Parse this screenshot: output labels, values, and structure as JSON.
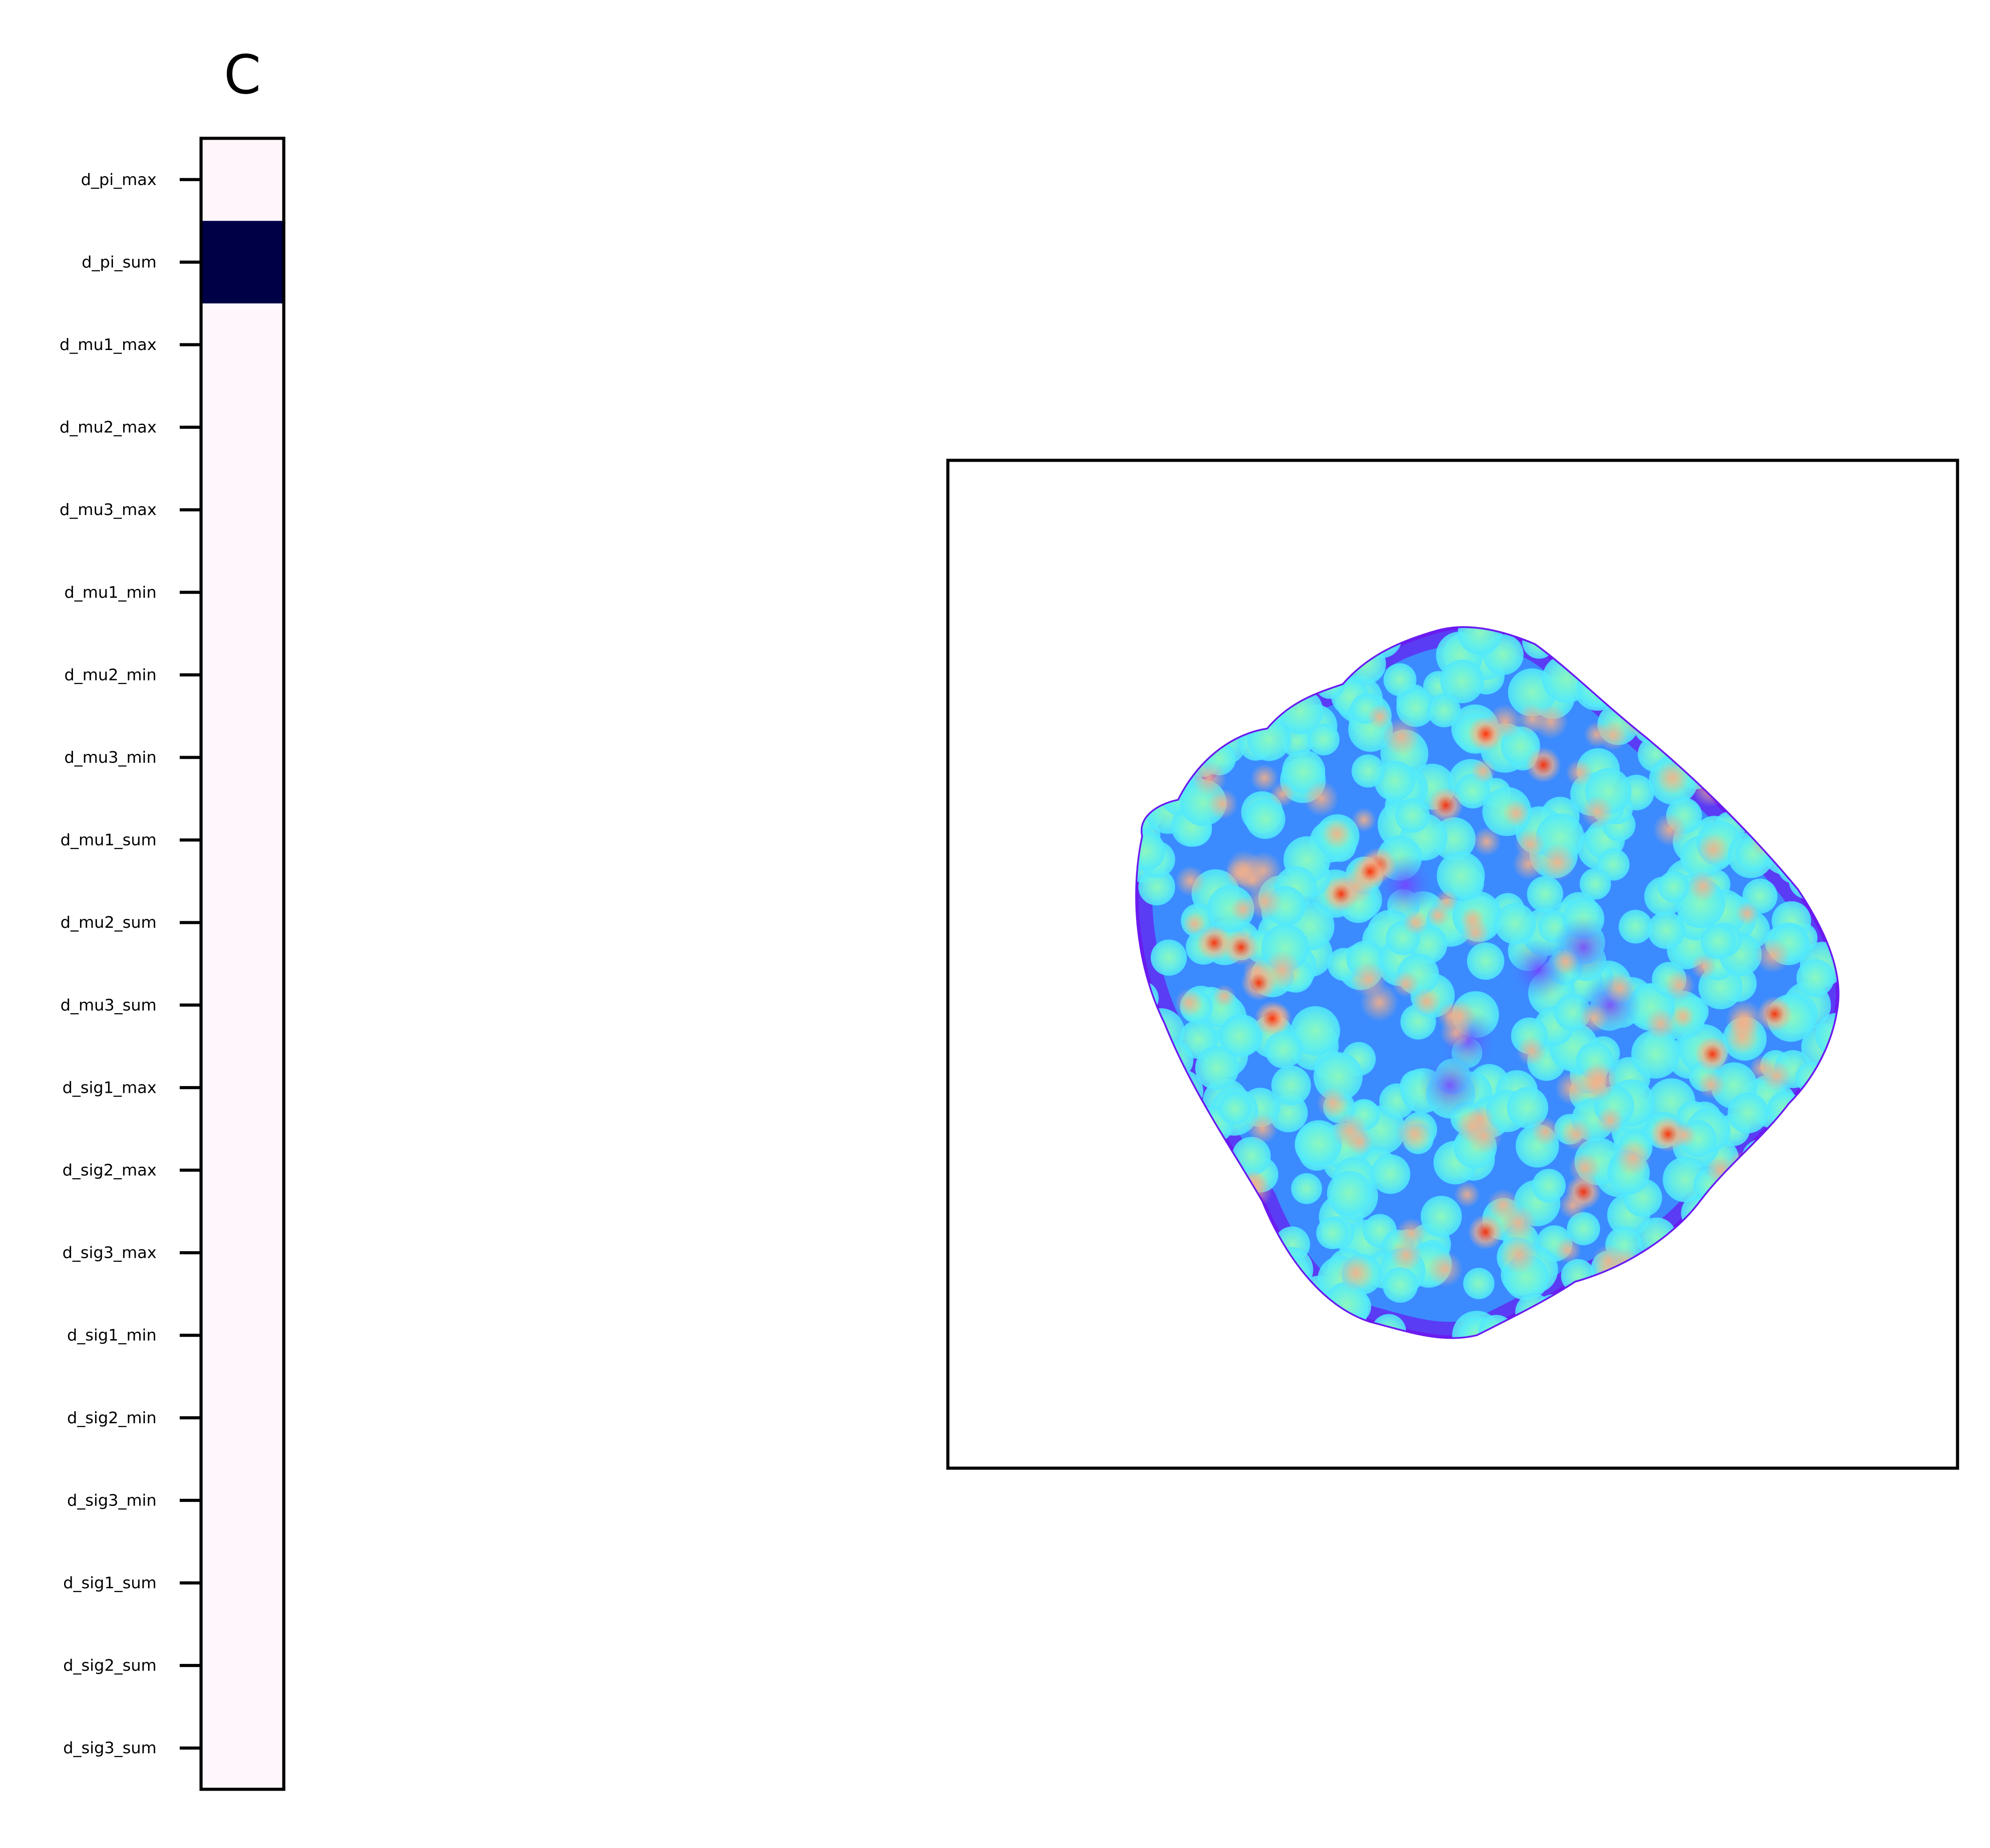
{
  "chart_data": [
    {
      "type": "heatmap",
      "title": "C",
      "categories": [
        "d_pi_max",
        "d_pi_sum",
        "d_mu1_max",
        "d_mu2_max",
        "d_mu3_max",
        "d_mu1_min",
        "d_mu2_min",
        "d_mu3_min",
        "d_mu1_sum",
        "d_mu2_sum",
        "d_mu3_sum",
        "d_sig1_max",
        "d_sig2_max",
        "d_sig3_max",
        "d_sig1_min",
        "d_sig2_min",
        "d_sig3_min",
        "d_sig1_sum",
        "d_sig2_sum",
        "d_sig3_sum"
      ],
      "values": [
        0.05,
        1.0,
        0.0,
        0.0,
        0.0,
        0.0,
        0.0,
        0.0,
        0.0,
        0.0,
        0.0,
        0.0,
        0.0,
        0.0,
        0.0,
        0.0,
        0.0,
        0.0,
        0.0,
        0.0
      ],
      "colormap": [
        "#fff7fb",
        "#f0f0fc",
        "#000046"
      ],
      "xticks": false
    },
    {
      "type": "heatmap",
      "xticks": false,
      "yticks": false,
      "colormap": [
        "#6a1cf0",
        "#3b8bff",
        "#4fe8ff",
        "#8cf7bf",
        "#f6b088",
        "#ff2a00"
      ]
    }
  ]
}
